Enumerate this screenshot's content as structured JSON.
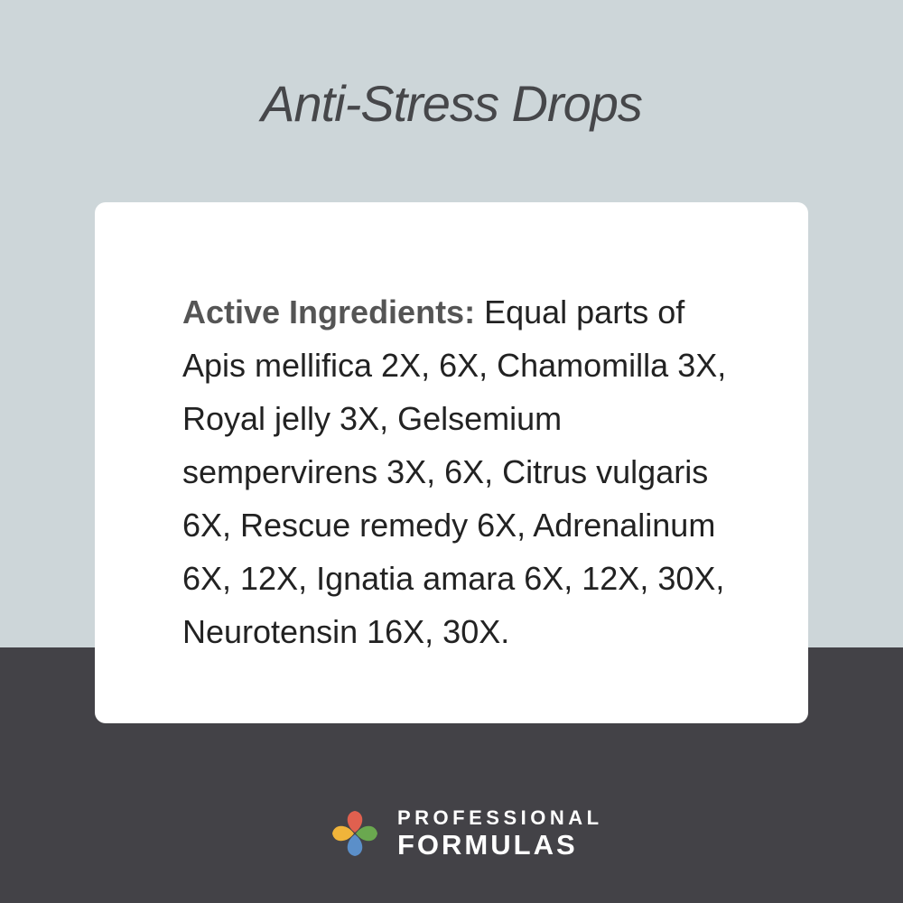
{
  "title": "Anti-Stress Drops",
  "ingredients": {
    "label": "Active Ingredients:",
    "lines": [
      " Equal parts of",
      "Apis mellifica 2X, 6X, Chamomilla 3X,",
      "Royal jelly 3X, Gelsemium",
      "sempervirens 3X, 6X, Citrus vulgaris",
      "6X, Rescue remedy 6X, Adrenalinum",
      "6X, 12X, Ignatia amara 6X, 12X, 30X,",
      "Neurotensin 16X, 30X."
    ]
  },
  "brand": {
    "line1": "PROFESSIONAL",
    "line2": "FORMULAS"
  },
  "colors": {
    "top_bg": "#cdd6d9",
    "bottom_bg": "#434247",
    "petal_red": "#e0604f",
    "petal_green": "#6aa84f",
    "petal_yellow": "#f0b43a",
    "petal_blue": "#5b8fc9"
  }
}
